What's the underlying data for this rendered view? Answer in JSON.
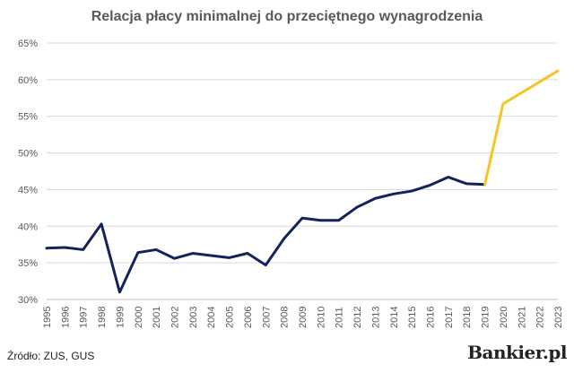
{
  "page": {
    "source_note": "Źródło: ZUS, GUS",
    "brand": "Bankier.pl"
  },
  "chart_data": {
    "type": "line",
    "title": "Relacja płacy minimalnej do przeciętnego wynagrodzenia",
    "xlabel": "",
    "ylabel": "",
    "ylim": [
      30,
      65
    ],
    "yticks": [
      "30%",
      "35%",
      "40%",
      "45%",
      "50%",
      "55%",
      "60%",
      "65%"
    ],
    "grid": true,
    "categories": [
      "1995",
      "1996",
      "1997",
      "1998",
      "1999",
      "2000",
      "2001",
      "2002",
      "2003",
      "2004",
      "2005",
      "2006",
      "2007",
      "2008",
      "2009",
      "2010",
      "2011",
      "2012",
      "2013",
      "2014",
      "2015",
      "2016",
      "2017",
      "2018",
      "2019",
      "2020",
      "2021",
      "2022",
      "2023"
    ],
    "series": [
      {
        "color": "#13235b",
        "values": [
          37.0,
          37.1,
          36.8,
          40.3,
          31.0,
          36.4,
          36.8,
          35.6,
          36.3,
          36.0,
          35.7,
          36.3,
          34.7,
          38.3,
          41.1,
          40.8,
          40.8,
          42.6,
          43.8,
          44.4,
          44.8,
          45.6,
          46.7,
          45.8,
          45.7,
          null,
          null,
          null,
          null
        ]
      },
      {
        "color": "#f7c425",
        "values": [
          null,
          null,
          null,
          null,
          null,
          null,
          null,
          null,
          null,
          null,
          null,
          null,
          null,
          null,
          null,
          null,
          null,
          null,
          null,
          null,
          null,
          null,
          null,
          null,
          45.7,
          56.7,
          58.2,
          59.7,
          61.2
        ]
      }
    ]
  }
}
